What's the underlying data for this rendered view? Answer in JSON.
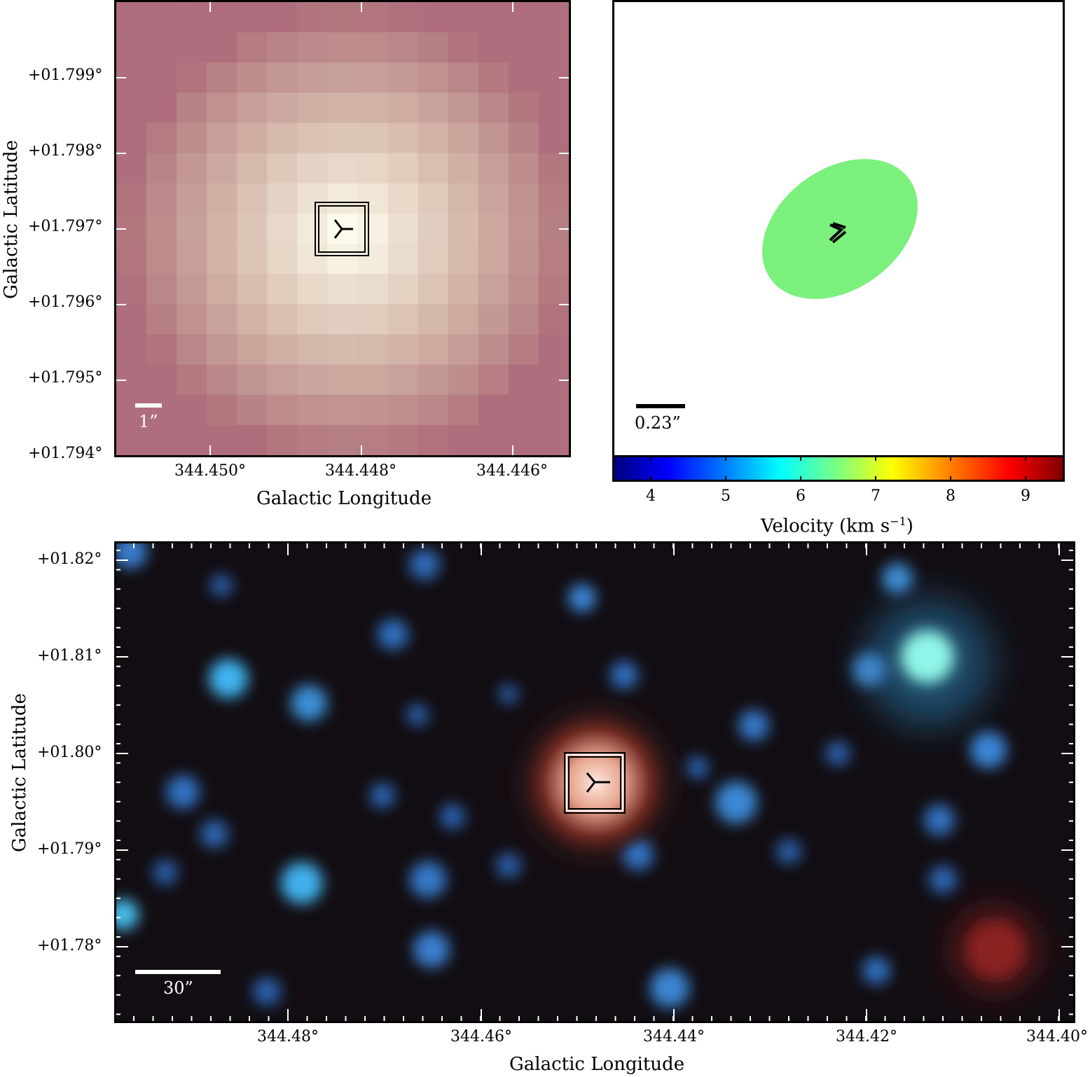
{
  "top_left_panel": {
    "y_ticks": [
      "+01.799°",
      "+01.798°",
      "+01.797°",
      "+01.796°",
      "+01.795°",
      "+01.794°"
    ],
    "x_ticks": [
      "344.450°",
      "344.448°",
      "344.446°"
    ],
    "x_label": "Galactic Longitude",
    "y_label": "Galactic Latitude",
    "scale_bar": "1”",
    "marker": "source-marker"
  },
  "top_right_panel": {
    "scale_bar": "0.23”",
    "ellipse_color": "#7cf07c",
    "colorbar": {
      "ticks": [
        "4",
        "5",
        "6",
        "7",
        "8",
        "9"
      ],
      "label": "Velocity (km s",
      "label_sup": "−1",
      "label_end": ")",
      "colormap": "jet"
    }
  },
  "bottom_panel": {
    "y_ticks": [
      "+01.82°",
      "+01.81°",
      "+01.80°",
      "+01.79°",
      "+01.78°"
    ],
    "x_ticks": [
      "344.48°",
      "344.46°",
      "344.44°",
      "344.42°",
      "344.40°"
    ],
    "x_label": "Galactic Longitude",
    "y_label": "Galactic Latitude",
    "scale_bar": "30”"
  }
}
